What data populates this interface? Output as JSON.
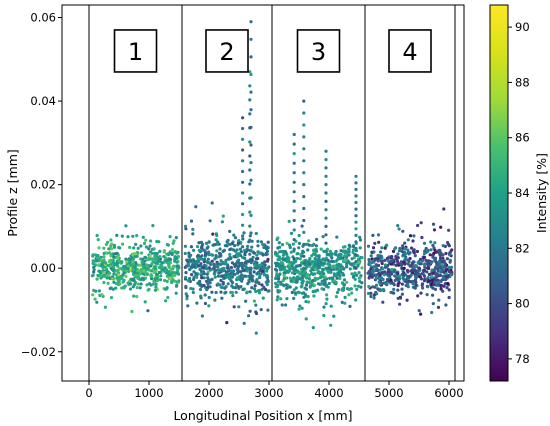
{
  "chart_data": {
    "type": "scatter",
    "title": "",
    "xlabel": "Longitudinal Position x [mm]",
    "ylabel": "Profile z [mm]",
    "xlim": [
      -450,
      6250
    ],
    "ylim": [
      -0.027,
      0.063
    ],
    "xticks": [
      0,
      1000,
      2000,
      3000,
      4000,
      5000,
      6000
    ],
    "yticks": [
      -0.02,
      0.0,
      0.02,
      0.04,
      0.06
    ],
    "ytick_labels": [
      "−0.02",
      "0.00",
      "0.02",
      "0.04",
      "0.06"
    ],
    "grid": false,
    "color_by": "intensity",
    "colormap": "viridis",
    "colorbar": {
      "label": "Intensity [%]",
      "min": 77.2,
      "max": 90.8,
      "ticks": [
        78,
        80,
        82,
        84,
        86,
        88,
        90
      ]
    },
    "segment_boundaries": [
      0,
      1550,
      3050,
      4600,
      6100
    ],
    "segments": [
      {
        "label": "1",
        "x_range": [
          0,
          1550
        ],
        "x_data": [
          50,
          1500
        ],
        "z_range": [
          -0.017,
          0.019
        ],
        "intensity_mean": 84.5,
        "intensity_spread": 2.5
      },
      {
        "label": "2",
        "x_range": [
          1550,
          3050
        ],
        "x_data": [
          1600,
          3000
        ],
        "z_range": [
          -0.022,
          0.022
        ],
        "intensity_mean": 82.0,
        "intensity_spread": 2.6
      },
      {
        "label": "3",
        "x_range": [
          3050,
          4600
        ],
        "x_data": [
          3100,
          4550
        ],
        "z_range": [
          -0.023,
          0.02
        ],
        "intensity_mean": 83.5,
        "intensity_spread": 2.2
      },
      {
        "label": "4",
        "x_range": [
          4600,
          6100
        ],
        "x_data": [
          4650,
          6050
        ],
        "z_range": [
          -0.019,
          0.02
        ],
        "intensity_mean": 80.5,
        "intensity_spread": 3.2
      }
    ],
    "spikes": [
      {
        "x": 2700,
        "z": 0.059
      },
      {
        "x": 2680,
        "z": 0.047
      },
      {
        "x": 2560,
        "z": 0.036
      },
      {
        "x": 3580,
        "z": 0.04
      },
      {
        "x": 3420,
        "z": 0.032
      },
      {
        "x": 3950,
        "z": 0.028
      },
      {
        "x": 4450,
        "z": 0.022
      }
    ]
  }
}
